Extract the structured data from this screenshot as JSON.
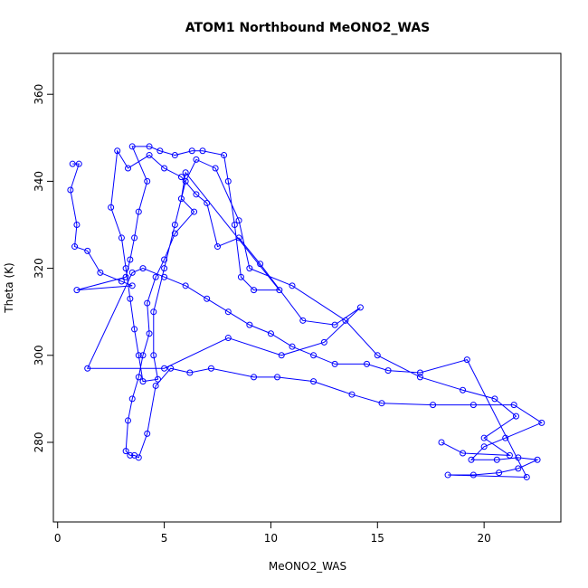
{
  "chart_data": {
    "type": "line",
    "markers": "open-circle",
    "color": "#0000ff",
    "title": "ATOM1 Northbound MeONO2_WAS",
    "x_label": "MeONO2_WAS",
    "y_label": "Theta (K)",
    "xlim": [
      -0.2,
      23.6
    ],
    "ylim": [
      261.7,
      369.4
    ],
    "xticks": [
      0,
      5,
      10,
      15,
      20
    ],
    "yticks": [
      280,
      300,
      320,
      340,
      360
    ],
    "x": [
      0.7,
      1,
      0.6,
      0.9,
      0.8,
      1.4,
      2,
      3,
      3.5,
      0.9,
      3.2,
      3.4,
      3.6,
      3.8,
      4.2,
      3.5,
      4.3,
      4.8,
      5.5,
      6.3,
      6.8,
      7.8,
      8,
      8.3,
      8.6,
      9.2,
      10.4,
      6,
      5.8,
      6.4,
      5.5,
      5,
      4.6,
      4.2,
      4.3,
      4,
      3.8,
      3.5,
      3.3,
      3.2,
      3.4,
      3.6,
      3.8,
      4.2,
      4.6,
      5.3,
      6.2,
      7.2,
      9.2,
      10.3,
      12,
      13.8,
      15.2,
      17.6,
      19.5,
      21.4,
      22.7,
      21,
      20,
      19.4,
      20.6,
      21.6,
      22.5,
      21.6,
      20.7,
      19.5,
      18.3,
      22,
      19.2,
      17,
      15.5,
      14.5,
      13,
      12,
      11,
      10,
      9,
      8,
      7,
      6,
      5,
      4,
      3.5,
      1.4,
      5,
      8,
      10.5,
      12.5,
      14.2,
      13,
      11.5,
      9.5,
      8.5,
      7.5,
      7,
      6.5,
      5.8,
      5,
      4.3,
      3.3,
      2.8,
      2.5,
      3,
      3.2,
      3.4,
      3.6,
      3.8,
      4,
      4.7,
      4.5,
      4.5,
      5,
      5.5,
      6,
      6.5,
      7.4,
      8.5,
      9,
      11,
      13.5,
      15,
      17,
      19,
      20.5,
      21.5,
      20,
      21.2,
      19,
      18
    ],
    "values": [
      344,
      344,
      338,
      330,
      325,
      324,
      319,
      317,
      316,
      315,
      318,
      322,
      327,
      333,
      340,
      348,
      348,
      347,
      346,
      347,
      347,
      346,
      340,
      330,
      318,
      315,
      315,
      342,
      336,
      333,
      328,
      322,
      318,
      312,
      305,
      300,
      295,
      290,
      285,
      278,
      277,
      277,
      276.5,
      282,
      293,
      297,
      296,
      297,
      295,
      295,
      294,
      291,
      289,
      288.6,
      288.6,
      288.6,
      284.5,
      281,
      279,
      276,
      276,
      276.5,
      276,
      274,
      273,
      272.5,
      272.5,
      272,
      299,
      296,
      296.5,
      298,
      298,
      300,
      302,
      305,
      307,
      310,
      313,
      316,
      318,
      320,
      319,
      297,
      297,
      304,
      300,
      303,
      311,
      307,
      308,
      321,
      327,
      325,
      335,
      337,
      341,
      343,
      346,
      343,
      347,
      334,
      327,
      320,
      313,
      306,
      300,
      294,
      294.5,
      300,
      310,
      320,
      330,
      340,
      345,
      343,
      331,
      320,
      316,
      308,
      300,
      295,
      292,
      290,
      286,
      281,
      277,
      277.5,
      280
    ]
  }
}
